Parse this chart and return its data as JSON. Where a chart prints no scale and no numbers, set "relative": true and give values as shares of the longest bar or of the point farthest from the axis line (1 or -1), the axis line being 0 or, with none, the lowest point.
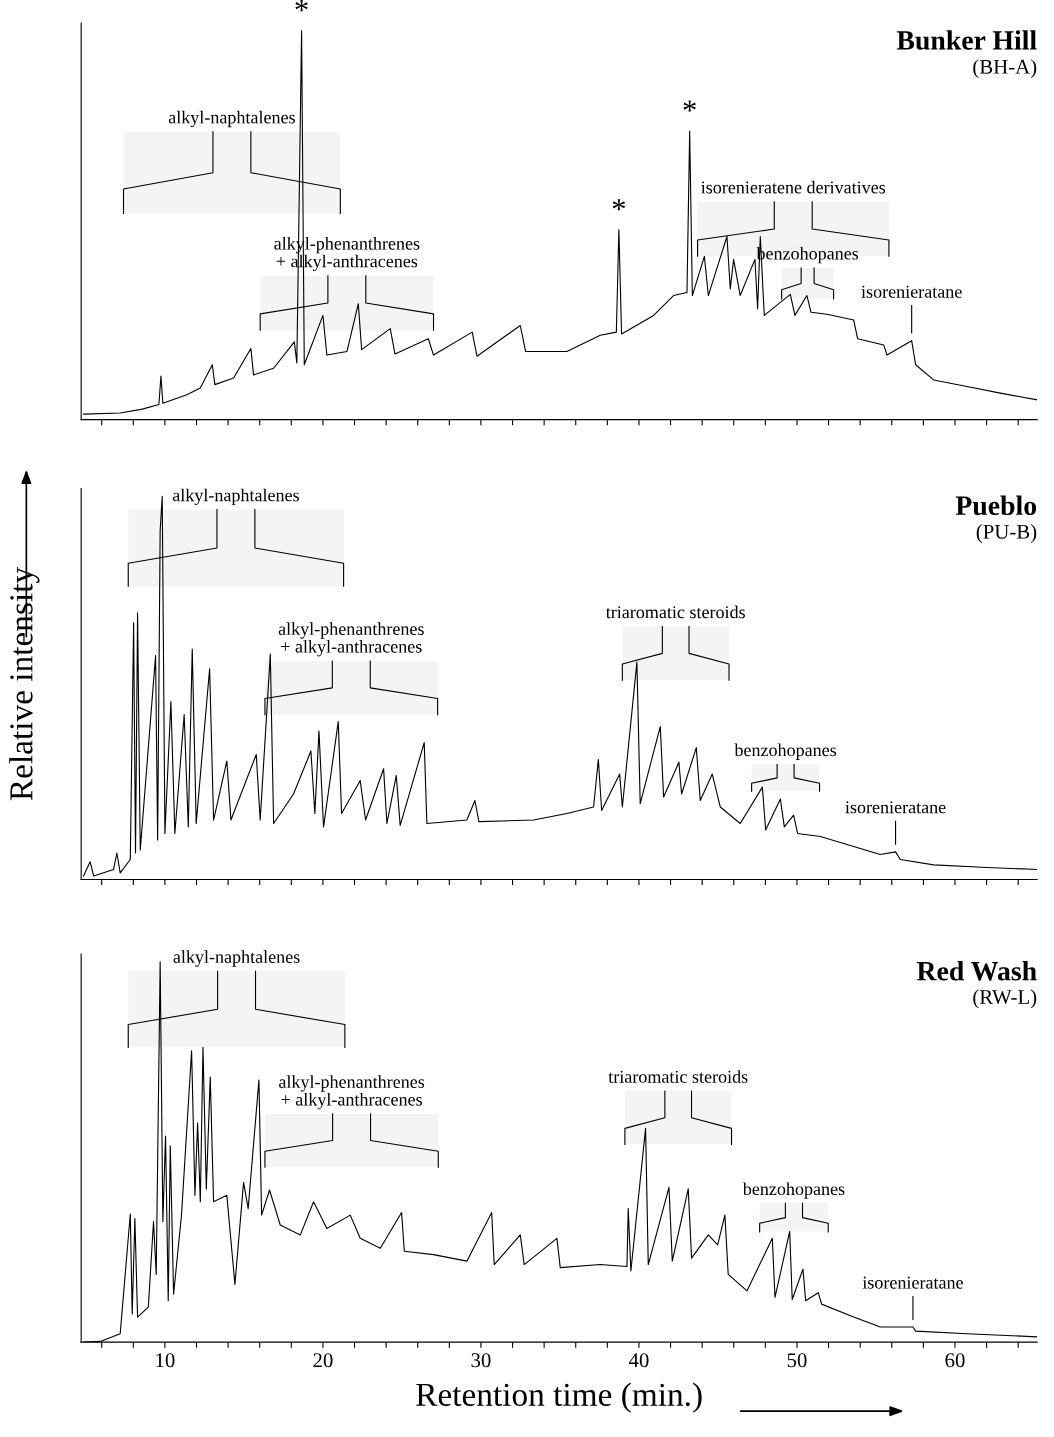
{
  "chart_data": [
    {
      "type": "line",
      "title": "Bunker Hill",
      "subtitle": "(BH-A)",
      "relative": true,
      "xlim": [
        4.7,
        65.2
      ],
      "tick_labels": false,
      "xticks": [
        {
          "value": 6,
          "label": null
        },
        {
          "value": 8,
          "label": null
        },
        {
          "value": 10,
          "label": null
        },
        {
          "value": 12,
          "label": null
        },
        {
          "value": 14,
          "label": null
        },
        {
          "value": 16,
          "label": null
        },
        {
          "value": 18,
          "label": null
        },
        {
          "value": 20,
          "label": null
        },
        {
          "value": 22,
          "label": null
        },
        {
          "value": 24,
          "label": null
        },
        {
          "value": 26,
          "label": null
        },
        {
          "value": 28,
          "label": null
        },
        {
          "value": 30,
          "label": null
        },
        {
          "value": 32,
          "label": null
        },
        {
          "value": 34,
          "label": null
        },
        {
          "value": 36,
          "label": null
        },
        {
          "value": 38,
          "label": null
        },
        {
          "value": 40,
          "label": null
        },
        {
          "value": 42,
          "label": null
        },
        {
          "value": 44,
          "label": null
        },
        {
          "value": 46,
          "label": null
        },
        {
          "value": 48,
          "label": null
        },
        {
          "value": 50,
          "label": null
        },
        {
          "value": 52,
          "label": null
        },
        {
          "value": 54,
          "label": null
        },
        {
          "value": 56,
          "label": null
        },
        {
          "value": 58,
          "label": null
        },
        {
          "value": 60,
          "label": null
        },
        {
          "value": 62,
          "label": null
        },
        {
          "value": 64,
          "label": null
        }
      ],
      "series": [
        {
          "color": "#000000",
          "x": [
            4.85,
            7.17,
            8.57,
            9.62,
            9.75,
            9.87,
            11.39,
            12.24,
            13.0,
            13.16,
            14.35,
            15.44,
            15.61,
            16.88,
            18.19,
            18.35,
            18.65,
            18.82,
            20.0,
            20.25,
            21.52,
            22.24,
            22.45,
            24.26,
            24.56,
            26.67,
            27.0,
            29.45,
            29.75,
            32.49,
            32.83,
            35.44,
            37.55,
            38.57,
            38.73,
            38.9,
            40.93,
            42.19,
            43.04,
            43.21,
            43.38,
            44.14,
            44.39,
            45.57,
            45.78,
            45.99,
            46.41,
            47.34,
            47.51,
            47.68,
            47.93,
            49.58,
            49.87,
            50.63,
            50.89,
            51.9,
            53.59,
            53.84,
            55.49,
            55.7,
            57.26,
            57.51,
            58.65,
            60.76,
            62.87,
            65.19
          ],
          "values": [
            0.014,
            0.017,
            0.027,
            0.039,
            0.112,
            0.042,
            0.064,
            0.081,
            0.141,
            0.09,
            0.107,
            0.183,
            0.115,
            0.132,
            0.2,
            0.146,
            1.0,
            0.141,
            0.268,
            0.166,
            0.175,
            0.298,
            0.18,
            0.234,
            0.169,
            0.208,
            0.166,
            0.225,
            0.163,
            0.242,
            0.175,
            0.175,
            0.217,
            0.225,
            0.488,
            0.22,
            0.268,
            0.319,
            0.327,
            0.742,
            0.319,
            0.42,
            0.319,
            0.471,
            0.336,
            0.412,
            0.319,
            0.412,
            0.285,
            0.471,
            0.268,
            0.322,
            0.268,
            0.319,
            0.276,
            0.271,
            0.256,
            0.208,
            0.192,
            0.166,
            0.203,
            0.141,
            0.102,
            0.085,
            0.068,
            0.051
          ]
        }
      ],
      "bands": [
        {
          "axis": "x",
          "from": 7.38,
          "to": 21.1,
          "label": "alkyl-naphtalenes"
        },
        {
          "axis": "x",
          "from": 16.03,
          "to": 27.0,
          "label": "alkyl-phenanthrenes\n+ alkyl-anthracenes"
        },
        {
          "axis": "x",
          "from": 43.71,
          "to": 55.82,
          "label": "isorenieratene derivatives"
        },
        {
          "axis": "x",
          "from": 49.03,
          "to": 52.32,
          "label": "benzohopanes"
        }
      ],
      "annotations": [
        {
          "text": "*",
          "x": 18.65,
          "y": 1.0
        },
        {
          "text": "*",
          "x": 38.73,
          "y": 0.488
        },
        {
          "text": "*",
          "x": 43.21,
          "y": 0.742
        },
        {
          "text": "isorenieratane",
          "x": 57.26,
          "y": 0.203
        }
      ]
    },
    {
      "type": "line",
      "title": "Pueblo",
      "subtitle": "(PU-B)",
      "relative": true,
      "xlim": [
        4.7,
        65.2
      ],
      "tick_labels": false,
      "ylabel": "Relative intensity",
      "xticks": [
        {
          "value": 6,
          "label": null
        },
        {
          "value": 8,
          "label": null
        },
        {
          "value": 10,
          "label": null
        },
        {
          "value": 12,
          "label": null
        },
        {
          "value": 14,
          "label": null
        },
        {
          "value": 16,
          "label": null
        },
        {
          "value": 18,
          "label": null
        },
        {
          "value": 20,
          "label": null
        },
        {
          "value": 22,
          "label": null
        },
        {
          "value": 24,
          "label": null
        },
        {
          "value": 26,
          "label": null
        },
        {
          "value": 28,
          "label": null
        },
        {
          "value": 30,
          "label": null
        },
        {
          "value": 32,
          "label": null
        },
        {
          "value": 34,
          "label": null
        },
        {
          "value": 36,
          "label": null
        },
        {
          "value": 38,
          "label": null
        },
        {
          "value": 40,
          "label": null
        },
        {
          "value": 42,
          "label": null
        },
        {
          "value": 44,
          "label": null
        },
        {
          "value": 46,
          "label": null
        },
        {
          "value": 48,
          "label": null
        },
        {
          "value": 50,
          "label": null
        },
        {
          "value": 52,
          "label": null
        },
        {
          "value": 54,
          "label": null
        },
        {
          "value": 56,
          "label": null
        },
        {
          "value": 58,
          "label": null
        },
        {
          "value": 60,
          "label": null
        },
        {
          "value": 62,
          "label": null
        },
        {
          "value": 64,
          "label": null
        }
      ],
      "series": [
        {
          "color": "#000000",
          "x": [
            4.85,
            5.27,
            5.49,
            6.75,
            6.96,
            7.17,
            7.81,
            8.02,
            8.14,
            8.27,
            8.44,
            9.41,
            9.54,
            9.7,
            9.83,
            10.0,
            10.38,
            10.63,
            11.22,
            11.48,
            11.73,
            11.98,
            12.83,
            13.08,
            13.92,
            14.18,
            15.78,
            16.03,
            16.67,
            16.88,
            18.14,
            19.24,
            19.49,
            19.75,
            20.04,
            20.97,
            21.18,
            22.36,
            22.7,
            23.84,
            24.05,
            24.64,
            24.89,
            26.41,
            26.58,
            29.11,
            29.62,
            29.87,
            33.33,
            35.44,
            37.13,
            37.43,
            37.64,
            38.78,
            38.95,
            39.87,
            40.08,
            41.35,
            41.56,
            42.53,
            42.7,
            43.63,
            43.88,
            44.64,
            45.15,
            46.41,
            47.81,
            48.02,
            48.95,
            49.2,
            49.79,
            50.04,
            51.48,
            53.59,
            55.27,
            56.24,
            56.54,
            58.65,
            62.03,
            65.19
          ],
          "values": [
            0.009,
            0.046,
            0.009,
            0.026,
            0.069,
            0.017,
            0.052,
            0.67,
            0.069,
            0.696,
            0.077,
            0.584,
            0.103,
            0.911,
            1.0,
            0.12,
            0.464,
            0.12,
            0.43,
            0.137,
            0.601,
            0.146,
            0.55,
            0.155,
            0.309,
            0.155,
            0.326,
            0.155,
            0.588,
            0.146,
            0.223,
            0.335,
            0.172,
            0.387,
            0.137,
            0.412,
            0.172,
            0.258,
            0.155,
            0.289,
            0.146,
            0.271,
            0.141,
            0.357,
            0.146,
            0.155,
            0.206,
            0.151,
            0.155,
            0.172,
            0.189,
            0.313,
            0.18,
            0.275,
            0.189,
            0.567,
            0.198,
            0.399,
            0.215,
            0.306,
            0.223,
            0.344,
            0.206,
            0.275,
            0.189,
            0.146,
            0.241,
            0.129,
            0.21,
            0.137,
            0.168,
            0.12,
            0.112,
            0.086,
            0.065,
            0.072,
            0.052,
            0.038,
            0.031,
            0.026
          ]
        }
      ],
      "bands": [
        {
          "axis": "x",
          "from": 7.68,
          "to": 21.31,
          "label": "alkyl-naphtalenes"
        },
        {
          "axis": "x",
          "from": 16.33,
          "to": 27.26,
          "label": "alkyl-phenanthrenes\n+ alkyl-anthracenes"
        },
        {
          "axis": "x",
          "from": 38.95,
          "to": 45.7,
          "label": "triaromatic steroids"
        },
        {
          "axis": "x",
          "from": 47.13,
          "to": 51.43,
          "label": "benzohopanes"
        }
      ],
      "annotations": [
        {
          "text": "isorenieratane",
          "x": 56.24,
          "y": 0.072
        }
      ]
    },
    {
      "type": "line",
      "title": "Red Wash",
      "subtitle": "(RW-L)",
      "relative": true,
      "xlim": [
        4.7,
        65.2
      ],
      "tick_labels": "x",
      "xlabel": "Retention time (min.)",
      "xticks": [
        {
          "value": 6,
          "label": null
        },
        {
          "value": 8,
          "label": null
        },
        10,
        {
          "value": 12,
          "label": null
        },
        {
          "value": 14,
          "label": null
        },
        {
          "value": 16,
          "label": null
        },
        {
          "value": 18,
          "label": null
        },
        20,
        {
          "value": 22,
          "label": null
        },
        {
          "value": 24,
          "label": null
        },
        {
          "value": 26,
          "label": null
        },
        {
          "value": 28,
          "label": null
        },
        30,
        {
          "value": 32,
          "label": null
        },
        {
          "value": 34,
          "label": null
        },
        {
          "value": 36,
          "label": null
        },
        {
          "value": 38,
          "label": null
        },
        40,
        {
          "value": 42,
          "label": null
        },
        {
          "value": 44,
          "label": null
        },
        {
          "value": 46,
          "label": null
        },
        {
          "value": 48,
          "label": null
        },
        50,
        {
          "value": 52,
          "label": null
        },
        {
          "value": 54,
          "label": null
        },
        {
          "value": 56,
          "label": null
        },
        {
          "value": 58,
          "label": null
        },
        60,
        {
          "value": 62,
          "label": null
        },
        {
          "value": 64,
          "label": null
        }
      ],
      "series": [
        {
          "color": "#000000",
          "x": [
            4.85,
            5.91,
            7.17,
            7.81,
            7.93,
            8.1,
            8.27,
            8.95,
            9.28,
            9.45,
            9.7,
            9.87,
            10.04,
            10.21,
            10.34,
            10.55,
            11.05,
            11.69,
            11.9,
            12.07,
            12.24,
            12.41,
            12.62,
            12.87,
            13.08,
            13.92,
            14.43,
            14.98,
            15.27,
            15.95,
            16.12,
            16.62,
            17.3,
            18.57,
            19.41,
            20.25,
            21.73,
            22.36,
            23.63,
            24.98,
            25.15,
            27.0,
            29.11,
            30.68,
            30.84,
            32.49,
            32.74,
            34.81,
            35.02,
            37.55,
            39.24,
            39.32,
            39.49,
            40.42,
            40.59,
            41.9,
            42.11,
            43.12,
            43.33,
            44.39,
            44.98,
            45.44,
            45.65,
            46.84,
            48.44,
            48.61,
            49.54,
            49.7,
            50.38,
            50.55,
            51.35,
            51.56,
            53.59,
            55.27,
            57.34,
            57.51,
            60.76,
            65.19
          ],
          "values": [
            0.0,
            0.002,
            0.022,
            0.337,
            0.074,
            0.325,
            0.066,
            0.092,
            0.317,
            0.178,
            1.0,
            0.317,
            0.542,
            0.109,
            0.516,
            0.126,
            0.334,
            0.766,
            0.386,
            0.576,
            0.369,
            0.775,
            0.403,
            0.697,
            0.369,
            0.386,
            0.152,
            0.42,
            0.351,
            0.689,
            0.334,
            0.4,
            0.308,
            0.282,
            0.369,
            0.299,
            0.334,
            0.273,
            0.247,
            0.341,
            0.239,
            0.23,
            0.213,
            0.341,
            0.204,
            0.282,
            0.204,
            0.273,
            0.196,
            0.204,
            0.199,
            0.351,
            0.187,
            0.562,
            0.204,
            0.407,
            0.213,
            0.403,
            0.221,
            0.282,
            0.256,
            0.334,
            0.178,
            0.135,
            0.273,
            0.118,
            0.291,
            0.112,
            0.192,
            0.109,
            0.13,
            0.1,
            0.066,
            0.04,
            0.04,
            0.029,
            0.022,
            0.014
          ]
        }
      ],
      "bands": [
        {
          "axis": "x",
          "from": 7.68,
          "to": 21.39,
          "label": "alkyl-naphtalenes"
        },
        {
          "axis": "x",
          "from": 16.33,
          "to": 27.3,
          "label": "alkyl-phenanthrenes\n+ alkyl-anthracenes"
        },
        {
          "axis": "x",
          "from": 39.11,
          "to": 45.86,
          "label": "triaromatic steroids"
        },
        {
          "axis": "x",
          "from": 47.64,
          "to": 51.98,
          "label": "benzohopanes"
        }
      ],
      "annotations": [
        {
          "text": "isorenieratane",
          "x": 57.34,
          "y": 0.04
        }
      ]
    }
  ]
}
